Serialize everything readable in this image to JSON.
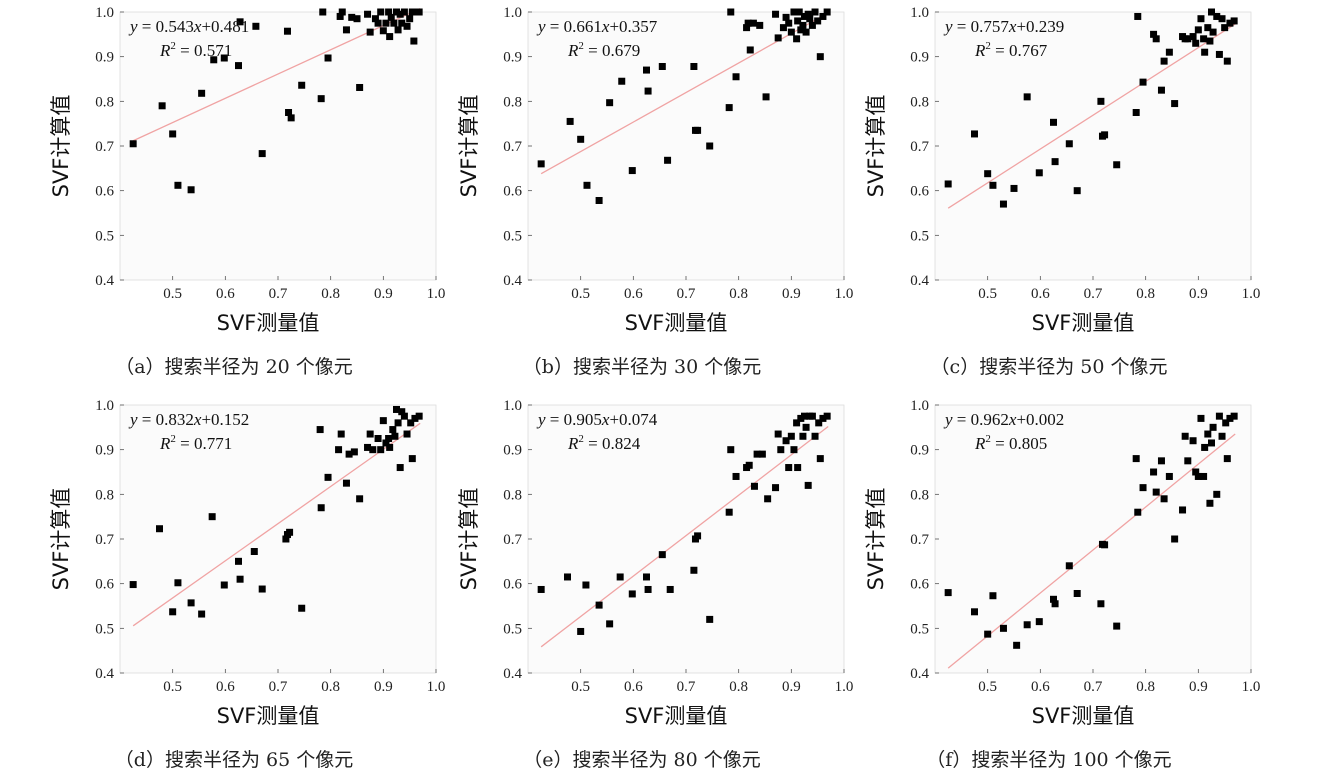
{
  "chart_data": [
    {
      "type": "scatter",
      "xlabel": "SVF测量值",
      "ylabel": "SVF计算值",
      "xlim": [
        0.4,
        1.0
      ],
      "ylim": [
        0.4,
        1.0
      ],
      "xticks": [
        "0.5",
        "0.6",
        "0.7",
        "0.8",
        "0.9",
        "1.0"
      ],
      "yticks": [
        "0.4",
        "0.5",
        "0.6",
        "0.7",
        "0.8",
        "0.9",
        "1.0"
      ],
      "equation_y": "y",
      "equation_eq": " = 0.543",
      "equation_x": "x",
      "equation_rest": "+0.481",
      "r2_r": "R",
      "r2_sup": "2",
      "r2_rest": " = 0.571",
      "fit": {
        "slope": 0.543,
        "intercept": 0.481
      },
      "caption": "（a）搜索半径为 20 个像元",
      "points": [
        [
          0.425,
          0.705
        ],
        [
          0.48,
          0.79
        ],
        [
          0.5,
          0.727
        ],
        [
          0.51,
          0.612
        ],
        [
          0.535,
          0.602
        ],
        [
          0.555,
          0.818
        ],
        [
          0.578,
          0.893
        ],
        [
          0.598,
          0.897
        ],
        [
          0.625,
          0.88
        ],
        [
          0.628,
          0.978
        ],
        [
          0.658,
          0.968
        ],
        [
          0.67,
          0.683
        ],
        [
          0.718,
          0.957
        ],
        [
          0.72,
          0.775
        ],
        [
          0.725,
          0.763
        ],
        [
          0.745,
          0.836
        ],
        [
          0.782,
          0.806
        ],
        [
          0.785,
          1.0
        ],
        [
          0.795,
          0.897
        ],
        [
          0.818,
          0.99
        ],
        [
          0.822,
          1.0
        ],
        [
          0.83,
          0.96
        ],
        [
          0.84,
          0.988
        ],
        [
          0.85,
          0.985
        ],
        [
          0.855,
          0.831
        ],
        [
          0.87,
          0.995
        ],
        [
          0.875,
          0.955
        ],
        [
          0.885,
          0.985
        ],
        [
          0.89,
          0.975
        ],
        [
          0.895,
          1.0
        ],
        [
          0.9,
          0.958
        ],
        [
          0.905,
          0.975
        ],
        [
          0.91,
          1.0
        ],
        [
          0.912,
          0.945
        ],
        [
          0.915,
          0.988
        ],
        [
          0.92,
          0.975
        ],
        [
          0.925,
          1.0
        ],
        [
          0.928,
          0.96
        ],
        [
          0.932,
          0.995
        ],
        [
          0.935,
          0.975
        ],
        [
          0.94,
          1.0
        ],
        [
          0.945,
          0.968
        ],
        [
          0.95,
          0.985
        ],
        [
          0.955,
          1.0
        ],
        [
          0.958,
          0.935
        ],
        [
          0.962,
          1.0
        ],
        [
          0.968,
          1.0
        ]
      ]
    },
    {
      "type": "scatter",
      "xlabel": "SVF测量值",
      "ylabel": "SVF计算值",
      "xlim": [
        0.4,
        1.0
      ],
      "ylim": [
        0.4,
        1.0
      ],
      "xticks": [
        "0.5",
        "0.6",
        "0.7",
        "0.8",
        "0.9",
        "1.0"
      ],
      "yticks": [
        "0.4",
        "0.5",
        "0.6",
        "0.7",
        "0.8",
        "0.9",
        "1.0"
      ],
      "equation_y": "y",
      "equation_eq": " = 0.661",
      "equation_x": "x",
      "equation_rest": "+0.357",
      "r2_r": "R",
      "r2_sup": "2",
      "r2_rest": " = 0.679",
      "fit": {
        "slope": 0.661,
        "intercept": 0.357
      },
      "caption": "（b）搜索半径为 30 个像元",
      "points": [
        [
          0.425,
          0.66
        ],
        [
          0.48,
          0.755
        ],
        [
          0.5,
          0.715
        ],
        [
          0.512,
          0.612
        ],
        [
          0.535,
          0.578
        ],
        [
          0.555,
          0.797
        ],
        [
          0.578,
          0.845
        ],
        [
          0.598,
          0.645
        ],
        [
          0.625,
          0.87
        ],
        [
          0.628,
          0.823
        ],
        [
          0.655,
          0.878
        ],
        [
          0.665,
          0.668
        ],
        [
          0.715,
          0.878
        ],
        [
          0.718,
          0.735
        ],
        [
          0.722,
          0.735
        ],
        [
          0.745,
          0.7
        ],
        [
          0.782,
          0.786
        ],
        [
          0.785,
          1.0
        ],
        [
          0.795,
          0.855
        ],
        [
          0.815,
          0.965
        ],
        [
          0.818,
          0.975
        ],
        [
          0.822,
          0.915
        ],
        [
          0.828,
          0.975
        ],
        [
          0.84,
          0.97
        ],
        [
          0.852,
          0.81
        ],
        [
          0.87,
          0.995
        ],
        [
          0.875,
          0.942
        ],
        [
          0.885,
          0.965
        ],
        [
          0.89,
          0.988
        ],
        [
          0.895,
          0.975
        ],
        [
          0.9,
          0.955
        ],
        [
          0.905,
          1.0
        ],
        [
          0.91,
          0.94
        ],
        [
          0.912,
          0.98
        ],
        [
          0.915,
          1.0
        ],
        [
          0.918,
          0.96
        ],
        [
          0.922,
          0.97
        ],
        [
          0.925,
          0.99
        ],
        [
          0.928,
          0.955
        ],
        [
          0.932,
          0.995
        ],
        [
          0.935,
          0.985
        ],
        [
          0.94,
          0.97
        ],
        [
          0.945,
          1.0
        ],
        [
          0.95,
          0.98
        ],
        [
          0.955,
          0.9
        ],
        [
          0.96,
          0.99
        ],
        [
          0.968,
          1.0
        ]
      ]
    },
    {
      "type": "scatter",
      "xlabel": "SVF测量值",
      "ylabel": "SVF计算值",
      "xlim": [
        0.4,
        1.0
      ],
      "ylim": [
        0.4,
        1.0
      ],
      "xticks": [
        "0.5",
        "0.6",
        "0.7",
        "0.8",
        "0.9",
        "1.0"
      ],
      "yticks": [
        "0.4",
        "0.5",
        "0.6",
        "0.7",
        "0.8",
        "0.9",
        "1.0"
      ],
      "equation_y": "y",
      "equation_eq": " = 0.757",
      "equation_x": "x",
      "equation_rest": "+0.239",
      "r2_r": "R",
      "r2_sup": "2",
      "r2_rest": " = 0.767",
      "fit": {
        "slope": 0.757,
        "intercept": 0.239
      },
      "caption": "（c）搜索半径为 50 个像元",
      "points": [
        [
          0.425,
          0.615
        ],
        [
          0.475,
          0.727
        ],
        [
          0.5,
          0.638
        ],
        [
          0.51,
          0.612
        ],
        [
          0.53,
          0.57
        ],
        [
          0.55,
          0.605
        ],
        [
          0.575,
          0.81
        ],
        [
          0.598,
          0.64
        ],
        [
          0.625,
          0.753
        ],
        [
          0.628,
          0.665
        ],
        [
          0.655,
          0.705
        ],
        [
          0.67,
          0.6
        ],
        [
          0.715,
          0.8
        ],
        [
          0.718,
          0.722
        ],
        [
          0.722,
          0.725
        ],
        [
          0.745,
          0.658
        ],
        [
          0.782,
          0.775
        ],
        [
          0.785,
          0.99
        ],
        [
          0.795,
          0.843
        ],
        [
          0.815,
          0.95
        ],
        [
          0.82,
          0.94
        ],
        [
          0.83,
          0.825
        ],
        [
          0.835,
          0.89
        ],
        [
          0.845,
          0.91
        ],
        [
          0.855,
          0.795
        ],
        [
          0.87,
          0.945
        ],
        [
          0.875,
          0.94
        ],
        [
          0.88,
          0.94
        ],
        [
          0.89,
          0.945
        ],
        [
          0.895,
          0.93
        ],
        [
          0.9,
          0.96
        ],
        [
          0.905,
          0.985
        ],
        [
          0.91,
          0.94
        ],
        [
          0.912,
          0.91
        ],
        [
          0.918,
          0.965
        ],
        [
          0.922,
          0.935
        ],
        [
          0.925,
          1.0
        ],
        [
          0.928,
          0.955
        ],
        [
          0.935,
          0.99
        ],
        [
          0.94,
          0.905
        ],
        [
          0.945,
          0.985
        ],
        [
          0.95,
          0.965
        ],
        [
          0.955,
          0.89
        ],
        [
          0.96,
          0.975
        ],
        [
          0.968,
          0.98
        ]
      ]
    },
    {
      "type": "scatter",
      "xlabel": "SVF测量值",
      "ylabel": "SVF计算值",
      "xlim": [
        0.4,
        1.0
      ],
      "ylim": [
        0.4,
        1.0
      ],
      "xticks": [
        "0.5",
        "0.6",
        "0.7",
        "0.8",
        "0.9",
        "1.0"
      ],
      "yticks": [
        "0.4",
        "0.5",
        "0.6",
        "0.7",
        "0.8",
        "0.9",
        "1.0"
      ],
      "equation_y": "y",
      "equation_eq": " = 0.832",
      "equation_x": "x",
      "equation_rest": "+0.152",
      "r2_r": "R",
      "r2_sup": "2",
      "r2_rest": " = 0.771",
      "fit": {
        "slope": 0.832,
        "intercept": 0.152
      },
      "caption": "（d）搜索半径为 65 个像元",
      "points": [
        [
          0.425,
          0.598
        ],
        [
          0.475,
          0.723
        ],
        [
          0.5,
          0.537
        ],
        [
          0.51,
          0.602
        ],
        [
          0.535,
          0.557
        ],
        [
          0.555,
          0.532
        ],
        [
          0.575,
          0.75
        ],
        [
          0.598,
          0.597
        ],
        [
          0.625,
          0.65
        ],
        [
          0.628,
          0.61
        ],
        [
          0.655,
          0.672
        ],
        [
          0.67,
          0.588
        ],
        [
          0.715,
          0.7
        ],
        [
          0.718,
          0.71
        ],
        [
          0.722,
          0.715
        ],
        [
          0.745,
          0.545
        ],
        [
          0.78,
          0.945
        ],
        [
          0.782,
          0.77
        ],
        [
          0.795,
          0.838
        ],
        [
          0.815,
          0.9
        ],
        [
          0.82,
          0.935
        ],
        [
          0.83,
          0.825
        ],
        [
          0.835,
          0.89
        ],
        [
          0.845,
          0.895
        ],
        [
          0.855,
          0.79
        ],
        [
          0.87,
          0.905
        ],
        [
          0.875,
          0.935
        ],
        [
          0.88,
          0.9
        ],
        [
          0.89,
          0.925
        ],
        [
          0.895,
          0.9
        ],
        [
          0.9,
          0.965
        ],
        [
          0.905,
          0.915
        ],
        [
          0.91,
          0.925
        ],
        [
          0.912,
          0.905
        ],
        [
          0.918,
          0.945
        ],
        [
          0.922,
          0.93
        ],
        [
          0.925,
          0.99
        ],
        [
          0.928,
          0.96
        ],
        [
          0.932,
          0.86
        ],
        [
          0.935,
          0.985
        ],
        [
          0.94,
          0.975
        ],
        [
          0.945,
          0.935
        ],
        [
          0.952,
          0.96
        ],
        [
          0.955,
          0.88
        ],
        [
          0.96,
          0.97
        ],
        [
          0.968,
          0.975
        ]
      ]
    },
    {
      "type": "scatter",
      "xlabel": "SVF测量值",
      "ylabel": "SVF计算值",
      "xlim": [
        0.4,
        1.0
      ],
      "ylim": [
        0.4,
        1.0
      ],
      "xticks": [
        "0.5",
        "0.6",
        "0.7",
        "0.8",
        "0.9",
        "1.0"
      ],
      "yticks": [
        "0.4",
        "0.5",
        "0.6",
        "0.7",
        "0.8",
        "0.9",
        "1.0"
      ],
      "equation_y": "y",
      "equation_eq": " = 0.905",
      "equation_x": "x",
      "equation_rest": "+0.074",
      "r2_r": "R",
      "r2_sup": "2",
      "r2_rest": " = 0.824",
      "fit": {
        "slope": 0.905,
        "intercept": 0.074
      },
      "caption": "（e）搜索半径为 80 个像元",
      "points": [
        [
          0.425,
          0.587
        ],
        [
          0.475,
          0.615
        ],
        [
          0.5,
          0.493
        ],
        [
          0.51,
          0.597
        ],
        [
          0.535,
          0.552
        ],
        [
          0.555,
          0.51
        ],
        [
          0.575,
          0.615
        ],
        [
          0.598,
          0.577
        ],
        [
          0.625,
          0.615
        ],
        [
          0.628,
          0.587
        ],
        [
          0.655,
          0.665
        ],
        [
          0.67,
          0.587
        ],
        [
          0.715,
          0.63
        ],
        [
          0.718,
          0.7
        ],
        [
          0.722,
          0.707
        ],
        [
          0.745,
          0.52
        ],
        [
          0.782,
          0.76
        ],
        [
          0.785,
          0.9
        ],
        [
          0.795,
          0.84
        ],
        [
          0.815,
          0.86
        ],
        [
          0.82,
          0.865
        ],
        [
          0.83,
          0.818
        ],
        [
          0.835,
          0.89
        ],
        [
          0.845,
          0.89
        ],
        [
          0.855,
          0.79
        ],
        [
          0.87,
          0.815
        ],
        [
          0.875,
          0.935
        ],
        [
          0.88,
          0.9
        ],
        [
          0.89,
          0.92
        ],
        [
          0.895,
          0.86
        ],
        [
          0.9,
          0.93
        ],
        [
          0.905,
          0.9
        ],
        [
          0.91,
          0.96
        ],
        [
          0.912,
          0.86
        ],
        [
          0.918,
          0.97
        ],
        [
          0.922,
          0.93
        ],
        [
          0.925,
          0.975
        ],
        [
          0.928,
          0.95
        ],
        [
          0.932,
          0.82
        ],
        [
          0.935,
          0.975
        ],
        [
          0.94,
          0.975
        ],
        [
          0.945,
          0.93
        ],
        [
          0.952,
          0.96
        ],
        [
          0.955,
          0.88
        ],
        [
          0.96,
          0.97
        ],
        [
          0.968,
          0.975
        ]
      ]
    },
    {
      "type": "scatter",
      "xlabel": "SVF测量值",
      "ylabel": "SVF计算值",
      "xlim": [
        0.4,
        1.0
      ],
      "ylim": [
        0.4,
        1.0
      ],
      "xticks": [
        "0.5",
        "0.6",
        "0.7",
        "0.8",
        "0.9",
        "1.0"
      ],
      "yticks": [
        "0.4",
        "0.5",
        "0.6",
        "0.7",
        "0.8",
        "0.9",
        "1.0"
      ],
      "equation_y": "y",
      "equation_eq": " = 0.962",
      "equation_x": "x",
      "equation_rest": "+0.002",
      "r2_r": "R",
      "r2_sup": "2",
      "r2_rest": " = 0.805",
      "fit": {
        "slope": 0.962,
        "intercept": 0.002
      },
      "caption": "（f）搜索半径为 100 个像元",
      "points": [
        [
          0.425,
          0.58
        ],
        [
          0.475,
          0.537
        ],
        [
          0.5,
          0.487
        ],
        [
          0.51,
          0.573
        ],
        [
          0.53,
          0.5
        ],
        [
          0.555,
          0.462
        ],
        [
          0.575,
          0.508
        ],
        [
          0.598,
          0.515
        ],
        [
          0.625,
          0.565
        ],
        [
          0.628,
          0.555
        ],
        [
          0.655,
          0.64
        ],
        [
          0.67,
          0.578
        ],
        [
          0.715,
          0.555
        ],
        [
          0.718,
          0.688
        ],
        [
          0.722,
          0.687
        ],
        [
          0.745,
          0.505
        ],
        [
          0.782,
          0.88
        ],
        [
          0.785,
          0.76
        ],
        [
          0.795,
          0.815
        ],
        [
          0.815,
          0.85
        ],
        [
          0.82,
          0.805
        ],
        [
          0.83,
          0.875
        ],
        [
          0.835,
          0.79
        ],
        [
          0.845,
          0.84
        ],
        [
          0.855,
          0.7
        ],
        [
          0.87,
          0.765
        ],
        [
          0.875,
          0.93
        ],
        [
          0.88,
          0.875
        ],
        [
          0.89,
          0.92
        ],
        [
          0.895,
          0.85
        ],
        [
          0.9,
          0.84
        ],
        [
          0.905,
          0.97
        ],
        [
          0.91,
          0.84
        ],
        [
          0.912,
          0.905
        ],
        [
          0.918,
          0.935
        ],
        [
          0.922,
          0.78
        ],
        [
          0.925,
          0.915
        ],
        [
          0.928,
          0.95
        ],
        [
          0.935,
          0.8
        ],
        [
          0.94,
          0.975
        ],
        [
          0.945,
          0.93
        ],
        [
          0.952,
          0.96
        ],
        [
          0.955,
          0.88
        ],
        [
          0.96,
          0.97
        ],
        [
          0.968,
          0.975
        ]
      ]
    }
  ]
}
